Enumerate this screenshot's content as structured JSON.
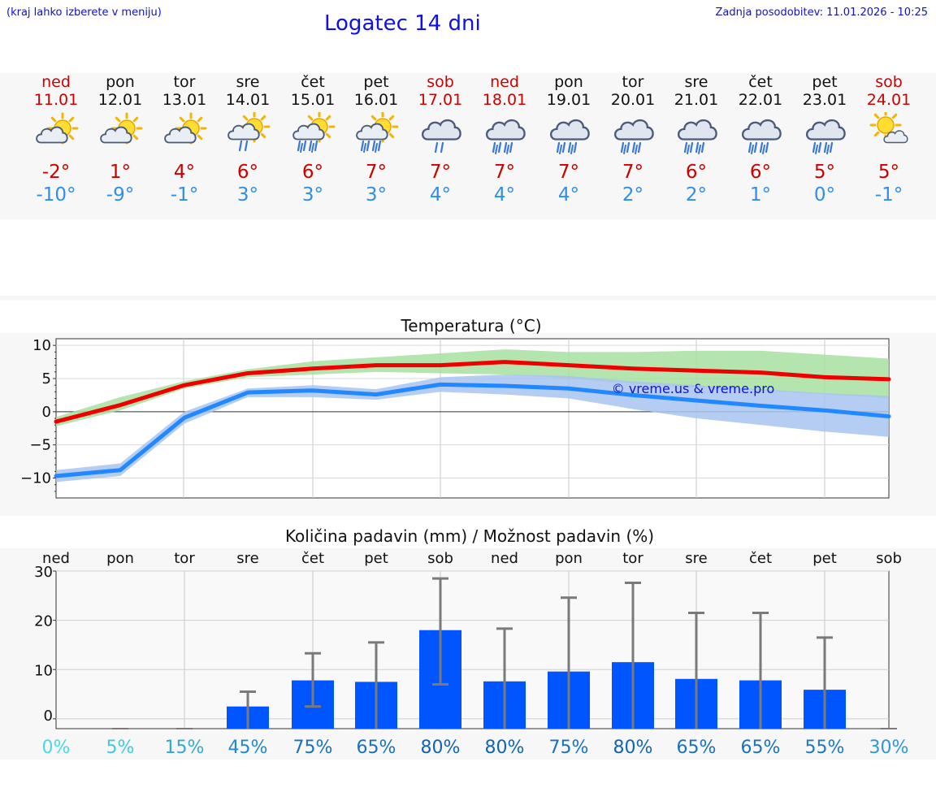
{
  "header": {
    "hint": "(kraj lahko izberete v meniju)",
    "title": "Logatec 14 dni",
    "updated": "Zadnja posodobitev: 11.01.2026 - 10:25"
  },
  "days": [
    {
      "name": "ned",
      "date": "11.01",
      "weekend": true,
      "icon": "sun-cloud-icon",
      "tmax": "-2°",
      "tmin": "-10°"
    },
    {
      "name": "pon",
      "date": "12.01",
      "weekend": false,
      "icon": "sun-cloud-icon",
      "tmax": "1°",
      "tmin": "-9°"
    },
    {
      "name": "tor",
      "date": "13.01",
      "weekend": false,
      "icon": "sun-cloud-icon",
      "tmax": "4°",
      "tmin": "-1°"
    },
    {
      "name": "sre",
      "date": "14.01",
      "weekend": false,
      "icon": "sun-cloud-light-rain-icon",
      "tmax": "6°",
      "tmin": "3°"
    },
    {
      "name": "čet",
      "date": "15.01",
      "weekend": false,
      "icon": "sun-cloud-rain-icon",
      "tmax": "6°",
      "tmin": "3°"
    },
    {
      "name": "pet",
      "date": "16.01",
      "weekend": false,
      "icon": "sun-cloud-rain-icon",
      "tmax": "7°",
      "tmin": "3°"
    },
    {
      "name": "sob",
      "date": "17.01",
      "weekend": true,
      "icon": "cloud-light-rain-icon",
      "tmax": "7°",
      "tmin": "4°"
    },
    {
      "name": "ned",
      "date": "18.01",
      "weekend": true,
      "icon": "cloud-rain-icon",
      "tmax": "7°",
      "tmin": "4°"
    },
    {
      "name": "pon",
      "date": "19.01",
      "weekend": false,
      "icon": "cloud-rain-icon",
      "tmax": "7°",
      "tmin": "4°"
    },
    {
      "name": "tor",
      "date": "20.01",
      "weekend": false,
      "icon": "cloud-rain-icon",
      "tmax": "7°",
      "tmin": "2°"
    },
    {
      "name": "sre",
      "date": "21.01",
      "weekend": false,
      "icon": "cloud-rain-icon",
      "tmax": "6°",
      "tmin": "2°"
    },
    {
      "name": "čet",
      "date": "22.01",
      "weekend": false,
      "icon": "cloud-rain-icon",
      "tmax": "6°",
      "tmin": "1°"
    },
    {
      "name": "pet",
      "date": "23.01",
      "weekend": false,
      "icon": "cloud-rain-icon",
      "tmax": "5°",
      "tmin": "0°"
    },
    {
      "name": "sob",
      "date": "24.01",
      "weekend": true,
      "icon": "sun-small-cloud-icon",
      "tmax": "5°",
      "tmin": "-1°"
    }
  ],
  "colors": {
    "weekend": "#cc0000",
    "weekday": "#111111",
    "tmax_line": "#ee0000",
    "tmax_band": "#a8e0a0",
    "tmin_line": "#2288ff",
    "tmin_band": "#a8c4f0",
    "precip_bar": "#0055ff",
    "errorbar": "#7a7a7a"
  },
  "chart_data": [
    {
      "type": "line",
      "title": "Temperatura (°C)",
      "watermark": "© vreme.us & vreme.pro",
      "ylim": [
        -13,
        11
      ],
      "yticks": [
        10,
        5,
        0,
        -5,
        -10
      ],
      "ytick_labels": [
        "10",
        "5",
        "0",
        "−5",
        "−10"
      ],
      "x": [
        0,
        1,
        2,
        3,
        4,
        5,
        6,
        7,
        8,
        9,
        10,
        11,
        12,
        13
      ],
      "series": [
        {
          "name": "tmax",
          "values": [
            -1.5,
            1,
            4,
            5.8,
            6.5,
            7,
            7,
            7.5,
            7,
            6.5,
            6.2,
            5.9,
            5.2,
            4.9
          ],
          "band_low": [
            -2.2,
            0.2,
            3.5,
            5.2,
            5.6,
            6.0,
            5.8,
            5.6,
            5.0,
            4.2,
            3.6,
            3.2,
            2.6,
            2.0
          ],
          "band_high": [
            -0.8,
            2.2,
            4.6,
            6.4,
            7.6,
            8.2,
            8.8,
            9.4,
            9.0,
            9.0,
            9.2,
            9.2,
            8.6,
            8.0
          ]
        },
        {
          "name": "tmin",
          "values": [
            -9.7,
            -8.8,
            -0.9,
            2.9,
            3.2,
            2.6,
            4.1,
            3.9,
            3.5,
            2.5,
            1.7,
            0.9,
            0.2,
            -0.7
          ],
          "band_low": [
            -10.6,
            -9.7,
            -1.8,
            2.2,
            2.2,
            1.8,
            3.0,
            2.6,
            2.0,
            0.4,
            -1.0,
            -2.0,
            -3.0,
            -3.8
          ],
          "band_high": [
            -8.8,
            -7.8,
            0.0,
            3.5,
            4.0,
            3.4,
            5.2,
            5.6,
            5.4,
            4.6,
            4.0,
            3.4,
            2.8,
            2.4
          ]
        }
      ]
    },
    {
      "type": "bar",
      "title": "Količina padavin (mm) / Možnost padavin (%)",
      "categories": [
        "ned",
        "pon",
        "tor",
        "sre",
        "čet",
        "pet",
        "sob",
        "ned",
        "pon",
        "tor",
        "sre",
        "čet",
        "pet",
        "sob"
      ],
      "ylim": [
        -2,
        30
      ],
      "yticks": [
        0,
        10,
        20,
        30
      ],
      "ytick_labels": [
        "0",
        "10",
        "20",
        "30"
      ],
      "values": [
        0,
        0,
        0,
        2.5,
        7.8,
        7.5,
        18,
        7.6,
        9.6,
        11.5,
        8.1,
        7.8,
        5.9,
        0
      ],
      "err_low": [
        0,
        0,
        0,
        0,
        2.5,
        0,
        7,
        0,
        0,
        0,
        0,
        0,
        0,
        0
      ],
      "err_high": [
        0,
        0,
        0,
        5.5,
        13.3,
        15.5,
        28.5,
        18.3,
        24.6,
        27.6,
        21.5,
        21.5,
        16.5,
        0
      ],
      "probability": [
        "0%",
        "5%",
        "15%",
        "45%",
        "75%",
        "65%",
        "80%",
        "80%",
        "75%",
        "80%",
        "65%",
        "65%",
        "55%",
        "30%"
      ],
      "probability_colors": [
        "#48d8e8",
        "#42c8e0",
        "#30a8d8",
        "#2088cc",
        "#1870c0",
        "#1870c0",
        "#1064b8",
        "#1064b8",
        "#1870c0",
        "#1064b8",
        "#1870c0",
        "#1870c0",
        "#1c78c4",
        "#2c98d4"
      ]
    }
  ]
}
